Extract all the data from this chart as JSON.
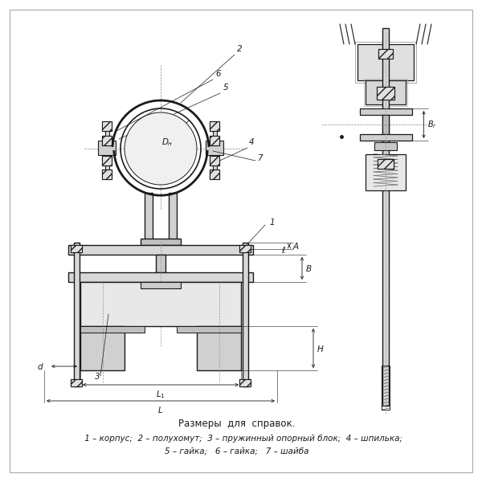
{
  "bg_color": "#ffffff",
  "line_color": "#1a1a1a",
  "dim_color": "#1a1a1a",
  "title_text": "Размеры  для  справок.",
  "legend_full1": "     1 – корпус;  2 – полухомут;  3 – пружинный опорный блок;  4 – шпилька;",
  "legend_full2": "5 – гайка;   6 – гайка;   7 – шайба"
}
